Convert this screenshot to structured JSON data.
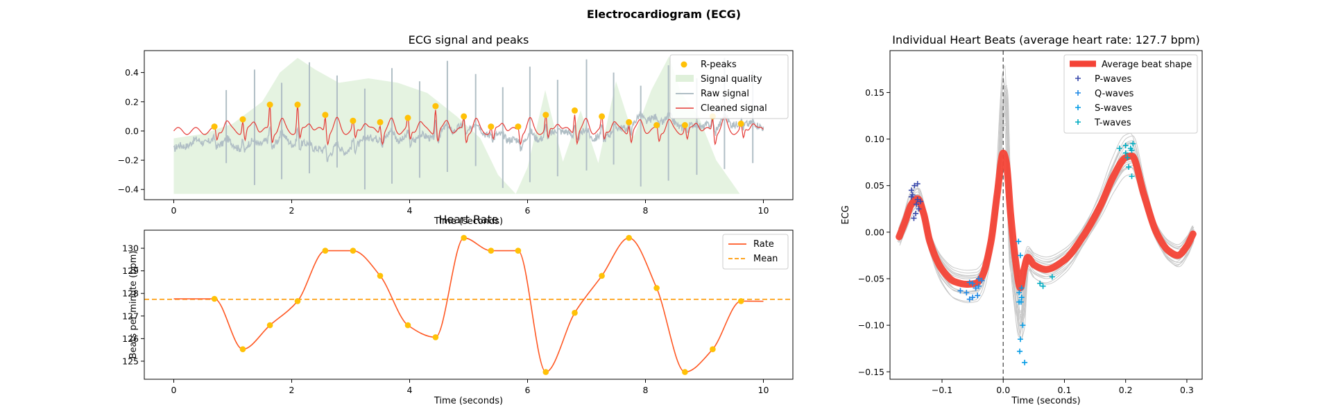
{
  "figure": {
    "title": "Electrocardiogram (ECG)"
  },
  "colors": {
    "rpeaks": "#FFC107",
    "quality": "#DFF0DA",
    "raw": "#B0BEC5",
    "cleaned": "#E53935",
    "rate": "#FF5722",
    "mean": "#FF9800",
    "avg_beat": "#F44336",
    "beat_lines": "#c8c8c8",
    "p_waves": "#3949AB",
    "q_waves": "#1E88E5",
    "s_waves": "#039BE5",
    "t_waves": "#00ACC1",
    "vline": "#666666"
  },
  "chart_data": [
    {
      "id": "ecg",
      "type": "line",
      "title": "ECG signal and peaks",
      "xlabel": "Time (seconds)",
      "ylabel": "",
      "xlim": [
        -0.5,
        10.5
      ],
      "ylim": [
        -0.47,
        0.55
      ],
      "xticks": [
        0,
        2,
        4,
        6,
        8,
        10
      ],
      "yticks": [
        -0.4,
        -0.2,
        0.0,
        0.2,
        0.4
      ],
      "ytick_labels": [
        "−0.4",
        "−0.2",
        "0.0",
        "0.2",
        "0.4"
      ],
      "legend": [
        "R-peaks",
        "Signal quality",
        "Raw signal",
        "Cleaned signal"
      ],
      "legend_position": "top-right",
      "rpeaks_x": [
        0.69,
        1.17,
        1.63,
        2.1,
        2.57,
        3.04,
        3.5,
        3.97,
        4.44,
        4.92,
        5.38,
        5.84,
        6.31,
        6.8,
        7.26,
        7.72,
        8.19,
        8.67,
        9.14,
        9.62
      ],
      "rpeaks_y": [
        0.03,
        0.08,
        0.18,
        0.18,
        0.11,
        0.07,
        0.06,
        0.09,
        0.17,
        0.1,
        0.03,
        0.03,
        0.11,
        0.14,
        0.1,
        0.06,
        0.04,
        0.04,
        0.1,
        0.05
      ],
      "quality_x": [
        0.0,
        0.5,
        1.0,
        1.5,
        1.8,
        2.1,
        2.4,
        2.8,
        3.3,
        3.8,
        4.3,
        4.8,
        5.2,
        5.5,
        5.8,
        6.0,
        6.3,
        6.6,
        6.9,
        7.2,
        7.5,
        7.8,
        8.1,
        8.4,
        8.6,
        8.9,
        9.2,
        9.6
      ],
      "quality_y": [
        -0.05,
        -0.02,
        0.05,
        0.2,
        0.4,
        0.5,
        0.42,
        0.33,
        0.36,
        0.33,
        0.26,
        0.1,
        -0.05,
        -0.3,
        -0.43,
        -0.25,
        0.28,
        -0.21,
        0.14,
        -0.22,
        0.34,
        -0.04,
        0.28,
        0.51,
        0.26,
        0.1,
        -0.2,
        -0.43
      ]
    },
    {
      "id": "rate",
      "type": "line",
      "title": "Heart Rate",
      "xlabel": "Time (seconds)",
      "ylabel": "Beats per minute (bpm)",
      "xlim": [
        -0.5,
        10.5
      ],
      "ylim": [
        124.2,
        130.8
      ],
      "xticks": [
        0,
        2,
        4,
        6,
        8,
        10
      ],
      "yticks": [
        125,
        126,
        127,
        128,
        129,
        130
      ],
      "legend": [
        "Rate",
        "Mean"
      ],
      "legend_position": "top-right",
      "mean": 127.74,
      "start": [
        0.0,
        127.76
      ],
      "end": [
        10.0,
        127.65
      ],
      "points_x": [
        0.69,
        1.17,
        1.63,
        2.1,
        2.57,
        3.04,
        3.5,
        3.97,
        4.44,
        4.92,
        5.38,
        5.84,
        6.31,
        6.8,
        7.26,
        7.72,
        8.19,
        8.67,
        9.14,
        9.62
      ],
      "points_y": [
        127.76,
        125.53,
        126.59,
        127.66,
        129.89,
        129.89,
        128.78,
        126.59,
        126.06,
        130.46,
        129.89,
        129.89,
        124.52,
        127.14,
        128.78,
        130.46,
        128.24,
        124.52,
        125.53,
        127.66
      ]
    },
    {
      "id": "beats",
      "type": "line",
      "title": "Individual Heart Beats (average heart rate: 127.7 bpm)",
      "xlabel": "Time (seconds)",
      "ylabel": "ECG",
      "xlim": [
        -0.185,
        0.325
      ],
      "ylim": [
        -0.158,
        0.195
      ],
      "xticks": [
        -0.1,
        0.0,
        0.1,
        0.2,
        0.3
      ],
      "xtick_labels": [
        "−0.1",
        "0.0",
        "0.1",
        "0.2",
        "0.3"
      ],
      "yticks": [
        -0.15,
        -0.1,
        -0.05,
        0.0,
        0.05,
        0.1,
        0.15
      ],
      "ytick_labels": [
        "−0.15",
        "−0.10",
        "−0.05",
        "0.00",
        "0.05",
        "0.10",
        "0.15"
      ],
      "legend": [
        "Average beat shape",
        "P-waves",
        "Q-waves",
        "S-waves",
        "T-waves"
      ],
      "legend_position": "top-right",
      "avg_x": [
        -0.17,
        -0.16,
        -0.15,
        -0.14,
        -0.13,
        -0.12,
        -0.1,
        -0.08,
        -0.06,
        -0.045,
        -0.035,
        -0.02,
        -0.01,
        0.0,
        0.005,
        0.012,
        0.02,
        0.028,
        0.034,
        0.04,
        0.05,
        0.07,
        0.1,
        0.13,
        0.16,
        0.18,
        0.2,
        0.21,
        0.23,
        0.25,
        0.27,
        0.285,
        0.3,
        0.31
      ],
      "avg_y": [
        -0.005,
        0.012,
        0.03,
        0.036,
        0.02,
        -0.01,
        -0.04,
        -0.053,
        -0.056,
        -0.055,
        -0.048,
        -0.01,
        0.04,
        0.085,
        0.075,
        0.02,
        -0.03,
        -0.06,
        -0.04,
        -0.027,
        -0.035,
        -0.04,
        -0.03,
        -0.005,
        0.03,
        0.06,
        0.08,
        0.082,
        0.04,
        0.0,
        -0.02,
        -0.025,
        -0.015,
        -0.002
      ],
      "p_x": [
        -0.15,
        -0.145,
        -0.14,
        -0.142,
        -0.148,
        -0.138,
        -0.146,
        -0.14,
        -0.135,
        -0.15,
        -0.143
      ],
      "p_y": [
        0.045,
        0.05,
        0.035,
        0.03,
        0.04,
        0.025,
        0.015,
        0.052,
        0.033,
        0.038,
        0.02
      ],
      "q_x": [
        -0.07,
        -0.06,
        -0.055,
        -0.05,
        -0.045,
        -0.04,
        -0.035,
        -0.05,
        -0.04,
        -0.055,
        -0.042
      ],
      "q_y": [
        -0.063,
        -0.065,
        -0.072,
        -0.055,
        -0.06,
        -0.05,
        -0.052,
        -0.07,
        -0.058,
        -0.054,
        -0.068
      ],
      "s_x": [
        0.025,
        0.028,
        0.03,
        0.026,
        0.032,
        0.028,
        0.035,
        0.027,
        0.03,
        0.029,
        0.026
      ],
      "s_y": [
        -0.01,
        -0.025,
        -0.06,
        -0.075,
        -0.1,
        -0.115,
        -0.14,
        -0.128,
        -0.07,
        -0.075,
        -0.065
      ],
      "t_x": [
        0.19,
        0.2,
        0.205,
        0.21,
        0.2,
        0.208,
        0.212,
        0.203,
        0.21,
        0.06,
        0.065,
        0.08
      ],
      "t_y": [
        0.09,
        0.085,
        0.07,
        0.06,
        0.093,
        0.09,
        0.095,
        0.08,
        0.088,
        -0.055,
        -0.058,
        -0.048
      ]
    }
  ]
}
